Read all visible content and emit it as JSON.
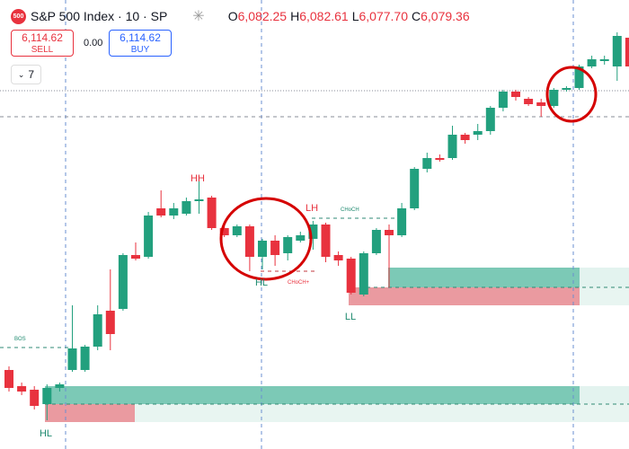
{
  "chart_data": {
    "type": "candlestick",
    "symbol_badge": "500",
    "title": "S&P 500 Index · 10 · SP",
    "ohlc_header": {
      "o_label": "O",
      "o": "6,082.25",
      "h_label": "H",
      "h": "6,082.61",
      "l_label": "L",
      "l": "6,077.70",
      "c_label": "C",
      "c": "6,079.36"
    },
    "trade": {
      "sell_price": "6,114.62",
      "sell": "SELL",
      "spread": "0.00",
      "buy_price": "6,114.62",
      "buy": "BUY"
    },
    "indicator_count": "7",
    "annotations": {
      "hh": "HH",
      "lh": "LH",
      "hl_mid": "HL",
      "hl_left": "HL",
      "ll": "LL",
      "bos": "BOS",
      "choch": "CHoCH",
      "choch_plus": "CHoCH+"
    },
    "up_color": "#22a07e",
    "down_color": "#e8323e",
    "ylim": [
      6035,
      6135
    ],
    "ohlc": [
      [
        6052.6,
        6053.4,
        6047.8,
        6048.6
      ],
      [
        6049.0,
        6049.8,
        6047.0,
        6047.8
      ],
      [
        6048.2,
        6049.0,
        6043.8,
        6044.6
      ],
      [
        6045.0,
        6049.4,
        6041.4,
        6048.6
      ],
      [
        6048.6,
        6049.8,
        6047.8,
        6049.4
      ],
      [
        6052.6,
        6067.0,
        6052.2,
        6057.4
      ],
      [
        6052.6,
        6058.2,
        6052.2,
        6057.8
      ],
      [
        6057.8,
        6067.0,
        6057.0,
        6065.0
      ],
      [
        6065.8,
        6075.0,
        6057.0,
        6060.6
      ],
      [
        6066.2,
        6078.6,
        6065.8,
        6078.2
      ],
      [
        6078.2,
        6081.0,
        6077.0,
        6077.4
      ],
      [
        6077.8,
        6087.8,
        6077.4,
        6087.0
      ],
      [
        6088.6,
        6092.6,
        6086.6,
        6087.0
      ],
      [
        6087.0,
        6089.8,
        6086.2,
        6088.6
      ],
      [
        6087.4,
        6091.0,
        6087.0,
        6090.2
      ],
      [
        6090.2,
        6095.8,
        6087.4,
        6090.6
      ],
      [
        6091.0,
        6091.4,
        6083.8,
        6084.2
      ],
      [
        6084.2,
        6085.4,
        6082.2,
        6082.6
      ],
      [
        6082.6,
        6085.0,
        6082.2,
        6084.6
      ],
      [
        6084.6,
        6085.0,
        6074.6,
        6077.8
      ],
      [
        6077.8,
        6081.8,
        6075.0,
        6081.4
      ],
      [
        6081.4,
        6082.6,
        6075.8,
        6078.2
      ],
      [
        6078.6,
        6082.6,
        6077.0,
        6082.2
      ],
      [
        6081.4,
        6083.4,
        6081.0,
        6082.6
      ],
      [
        6081.8,
        6085.8,
        6079.4,
        6085.0
      ],
      [
        6085.0,
        6085.4,
        6076.6,
        6077.8
      ],
      [
        6078.2,
        6079.0,
        6075.8,
        6077.0
      ],
      [
        6077.4,
        6077.8,
        6069.4,
        6069.8
      ],
      [
        6069.4,
        6079.0,
        6069.0,
        6078.6
      ],
      [
        6078.6,
        6084.2,
        6078.2,
        6083.8
      ],
      [
        6083.8,
        6085.0,
        6071.0,
        6082.6
      ],
      [
        6082.6,
        6089.8,
        6082.2,
        6088.6
      ],
      [
        6088.6,
        6097.8,
        6088.2,
        6097.4
      ],
      [
        6097.4,
        6101.0,
        6096.6,
        6099.8
      ],
      [
        6099.8,
        6100.6,
        6099.0,
        6099.4
      ],
      [
        6099.8,
        6107.0,
        6099.4,
        6105.0
      ],
      [
        6105.0,
        6105.4,
        6103.0,
        6103.8
      ],
      [
        6105.0,
        6107.4,
        6103.8,
        6105.8
      ],
      [
        6105.8,
        6111.4,
        6105.0,
        6111.0
      ],
      [
        6111.0,
        6115.0,
        6110.2,
        6114.6
      ],
      [
        6114.6,
        6115.0,
        6112.6,
        6113.4
      ],
      [
        6113.0,
        6113.4,
        6111.4,
        6111.8
      ],
      [
        6112.2,
        6113.0,
        6109.0,
        6111.4
      ],
      [
        6111.4,
        6115.4,
        6111.0,
        6115.0
      ],
      [
        6115.0,
        6115.8,
        6114.6,
        6115.4
      ],
      [
        6115.4,
        6120.6,
        6115.0,
        6120.2
      ],
      [
        6120.2,
        6122.6,
        6119.8,
        6121.8
      ],
      [
        6121.4,
        6122.6,
        6120.6,
        6121.8
      ],
      [
        6120.2,
        6127.8,
        6117.0,
        6127.0
      ],
      [
        6126.6,
        6128.2,
        6119.0,
        6120.2
      ]
    ]
  }
}
